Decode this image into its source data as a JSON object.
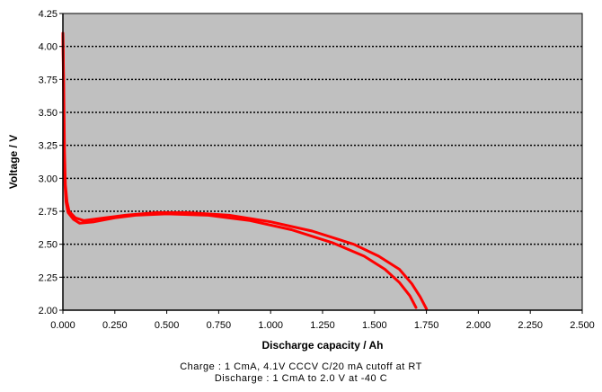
{
  "chart_data": {
    "type": "line",
    "title": "",
    "xlabel": "Discharge capacity / Ah",
    "ylabel": "Voltage / V",
    "xlim": [
      0,
      2.5
    ],
    "ylim": [
      2.0,
      4.25
    ],
    "x_ticks": [
      "0.000",
      "0.250",
      "0.500",
      "0.750",
      "1.000",
      "1.250",
      "1.500",
      "1.750",
      "2.000",
      "2.250",
      "2.500"
    ],
    "y_ticks": [
      "2.00",
      "2.25",
      "2.50",
      "2.75",
      "3.00",
      "3.25",
      "3.50",
      "3.75",
      "4.00",
      "4.25"
    ],
    "grid": "horizontal dotted",
    "plot_background": "#c0c0c0",
    "series": [
      {
        "color": "#ff0000",
        "points": [
          [
            0.0,
            4.1
          ],
          [
            0.003,
            3.7
          ],
          [
            0.006,
            3.2
          ],
          [
            0.01,
            2.95
          ],
          [
            0.015,
            2.82
          ],
          [
            0.025,
            2.74
          ],
          [
            0.05,
            2.69
          ],
          [
            0.08,
            2.66
          ],
          [
            0.15,
            2.67
          ],
          [
            0.25,
            2.7
          ],
          [
            0.35,
            2.72
          ],
          [
            0.5,
            2.73
          ],
          [
            0.7,
            2.72
          ],
          [
            0.9,
            2.68
          ],
          [
            1.1,
            2.61
          ],
          [
            1.3,
            2.51
          ],
          [
            1.45,
            2.41
          ],
          [
            1.55,
            2.31
          ],
          [
            1.62,
            2.21
          ],
          [
            1.67,
            2.11
          ],
          [
            1.7,
            2.02
          ]
        ]
      },
      {
        "color": "#ff0000",
        "points": [
          [
            0.0,
            4.1
          ],
          [
            0.004,
            3.7
          ],
          [
            0.008,
            3.2
          ],
          [
            0.012,
            2.95
          ],
          [
            0.02,
            2.82
          ],
          [
            0.03,
            2.75
          ],
          [
            0.06,
            2.7
          ],
          [
            0.1,
            2.68
          ],
          [
            0.2,
            2.7
          ],
          [
            0.3,
            2.72
          ],
          [
            0.45,
            2.74
          ],
          [
            0.6,
            2.74
          ],
          [
            0.8,
            2.72
          ],
          [
            1.0,
            2.67
          ],
          [
            1.2,
            2.6
          ],
          [
            1.4,
            2.5
          ],
          [
            1.52,
            2.41
          ],
          [
            1.62,
            2.31
          ],
          [
            1.68,
            2.2
          ],
          [
            1.72,
            2.1
          ],
          [
            1.75,
            2.01
          ]
        ]
      }
    ]
  },
  "notes": {
    "line1": "Charge : 1 CmA, 4.1V CCCV C/20 mA cutoff at RT",
    "line2": "Discharge : 1 CmA to 2.0 V at -40  C"
  }
}
